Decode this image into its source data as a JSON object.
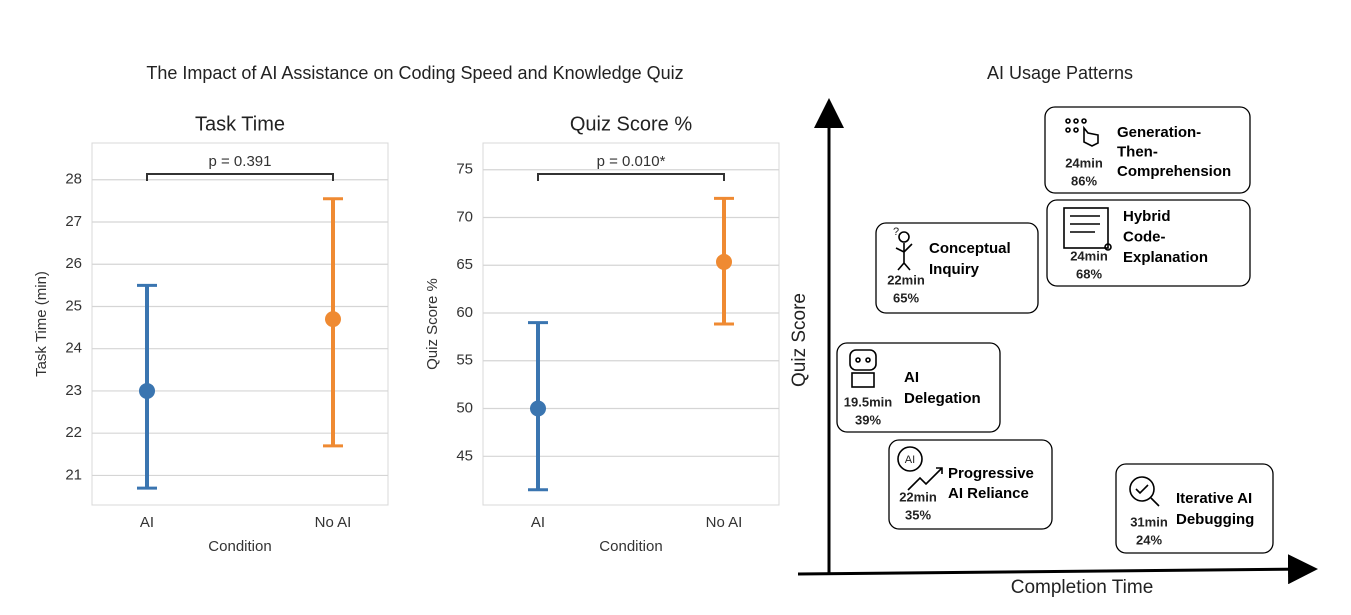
{
  "figure_title": "The Impact of AI Assistance on Coding Speed and Knowledge Quiz",
  "chart_data": [
    {
      "type": "errorbar",
      "title": "Task Time",
      "x_label": "Condition",
      "y_label": "Task Time (min)",
      "categories": [
        "AI",
        "No AI"
      ],
      "colors": [
        "#3a75b0",
        "#ef8a32"
      ],
      "values": [
        23.0,
        24.7
      ],
      "ci_low": [
        20.7,
        21.7
      ],
      "ci_high": [
        25.5,
        27.55
      ],
      "ylim": [
        20.3,
        28.87
      ],
      "yticks": [
        21,
        22,
        23,
        24,
        25,
        26,
        27,
        28
      ],
      "grid": true,
      "annotation": "p = 0.391"
    },
    {
      "type": "errorbar",
      "title": "Quiz Score %",
      "x_label": "Condition",
      "y_label": "Quiz Score %",
      "categories": [
        "AI",
        "No AI"
      ],
      "colors": [
        "#3a75b0",
        "#ef8a32"
      ],
      "values": [
        50.0,
        65.35
      ],
      "ci_low": [
        41.5,
        58.85
      ],
      "ci_high": [
        59.0,
        72.0
      ],
      "ylim": [
        39.9,
        77.8
      ],
      "yticks": [
        45,
        50,
        55,
        60,
        65,
        70,
        75
      ],
      "grid": true,
      "annotation": "p = 0.010*"
    }
  ],
  "diagram": {
    "title": "AI Usage Patterns",
    "y_axis": "Quiz Score",
    "x_axis": "Completion Time",
    "nodes": [
      {
        "label": [
          "Generation-",
          "Then-",
          "Comprehension"
        ],
        "time": "24min",
        "score": "86%",
        "score_color": "#3c8a2e"
      },
      {
        "label": [
          "Hybrid",
          "Code-",
          "Explanation"
        ],
        "time": "24min",
        "score": "68%",
        "score_color": "#3c8a2e"
      },
      {
        "label": [
          "Conceptual",
          "Inquiry"
        ],
        "time": "22min",
        "score": "65%",
        "score_color": "#3c8a2e"
      },
      {
        "label": [
          "AI",
          "Delegation"
        ],
        "time": "19.5min",
        "score": "39%",
        "score_color": "#a31818"
      },
      {
        "label": [
          "Progressive",
          "AI Reliance"
        ],
        "time": "22min",
        "score": "35%",
        "score_color": "#a31818"
      },
      {
        "label": [
          "Iterative AI",
          "Debugging"
        ],
        "time": "31min",
        "score": "24%",
        "score_color": "#a31818"
      }
    ]
  }
}
